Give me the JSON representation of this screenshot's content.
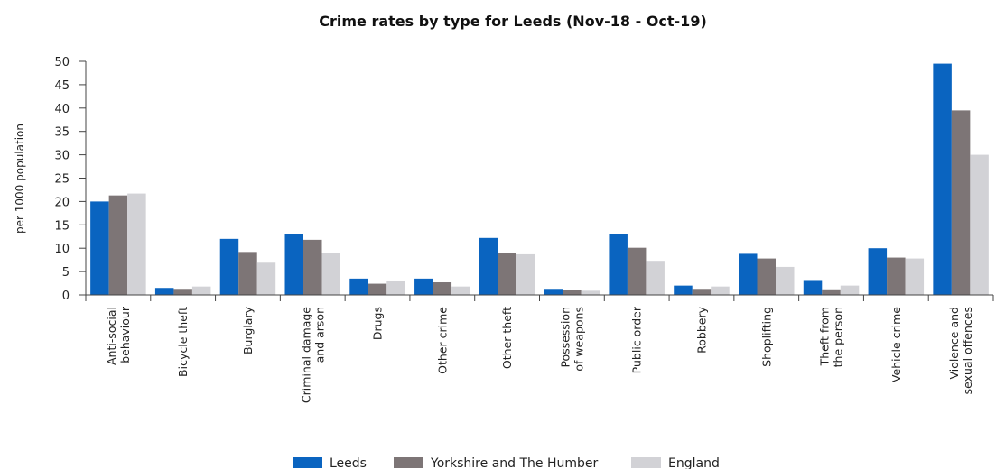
{
  "chart_data": {
    "type": "bar",
    "title": "Crime rates by type for Leeds (Nov-18 - Oct-19)",
    "xlabel": "",
    "ylabel": "per 1000 population",
    "ylim": [
      0,
      50
    ],
    "yticks": [
      0,
      5,
      10,
      15,
      20,
      25,
      30,
      35,
      40,
      45,
      50
    ],
    "grid": false,
    "legend_position": "bottom",
    "categories": [
      [
        "Anti-social",
        "behaviour"
      ],
      [
        "Bicycle theft"
      ],
      [
        "Burglary"
      ],
      [
        "Criminal damage",
        "and arson"
      ],
      [
        "Drugs"
      ],
      [
        "Other crime"
      ],
      [
        "Other theft"
      ],
      [
        "Possession",
        "of weapons"
      ],
      [
        "Public order"
      ],
      [
        "Robbery"
      ],
      [
        "Shoplifting"
      ],
      [
        "Theft from",
        "the person"
      ],
      [
        "Vehicle crime"
      ],
      [
        "Violence and",
        "sexual offences"
      ]
    ],
    "series": [
      {
        "name": "Leeds",
        "color": "#0a64c0",
        "values": [
          20.0,
          1.5,
          12.0,
          13.0,
          3.5,
          3.5,
          12.2,
          1.3,
          13.0,
          2.0,
          8.8,
          3.0,
          10.0,
          49.5
        ]
      },
      {
        "name": "Yorkshire and The Humber",
        "color": "#7d7576",
        "values": [
          21.3,
          1.3,
          9.2,
          11.8,
          2.4,
          2.7,
          9.0,
          1.0,
          10.1,
          1.3,
          7.8,
          1.2,
          8.0,
          39.5
        ]
      },
      {
        "name": "England",
        "color": "#d2d2d6",
        "values": [
          21.7,
          1.8,
          6.9,
          9.0,
          2.9,
          1.8,
          8.7,
          0.9,
          7.3,
          1.8,
          6.0,
          2.0,
          7.8,
          30.0
        ]
      }
    ]
  }
}
